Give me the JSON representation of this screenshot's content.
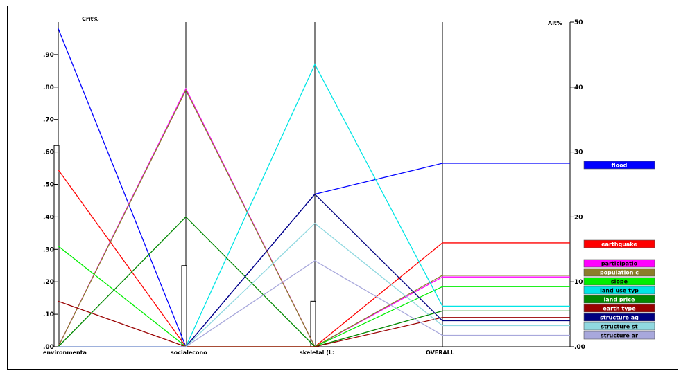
{
  "chart_data": {
    "type": "line",
    "title": "",
    "left_axis_label": "Crit%",
    "right_axis_label": "Alt%",
    "categories": [
      "environmenta",
      "socialecono",
      "skeletal (L:",
      "OVERALL"
    ],
    "left_ticks": [
      ".00",
      ".10",
      ".20",
      ".30",
      ".40",
      ".50",
      ".60",
      ".70",
      ".80",
      ".90"
    ],
    "right_ticks": [
      ".00",
      "10",
      "20",
      "30",
      "40",
      "50"
    ],
    "ylim_left": [
      0,
      1.0
    ],
    "ylim_right": [
      0,
      50
    ],
    "criteria_weights": [
      0.62,
      0.25,
      0.14
    ],
    "legend_position": "right",
    "series": [
      {
        "name": "flood",
        "color": "#0000ff",
        "values": [
          0.98,
          0.0,
          0.47,
          0.565
        ]
      },
      {
        "name": "earthquake",
        "color": "#ff0000",
        "values": [
          0.545,
          0.0,
          0.0,
          0.32
        ]
      },
      {
        "name": "participatio",
        "color": "#ff00ff",
        "values": [
          0.0,
          0.795,
          0.0,
          0.215
        ]
      },
      {
        "name": "population c",
        "color": "#8b7d2a",
        "values": [
          0.0,
          0.79,
          0.0,
          0.22
        ]
      },
      {
        "name": "slope",
        "color": "#00ee00",
        "values": [
          0.31,
          0.0,
          0.0,
          0.185
        ]
      },
      {
        "name": "land use typ",
        "color": "#00e5e5",
        "values": [
          0.0,
          0.0,
          0.87,
          0.125
        ]
      },
      {
        "name": "land price",
        "color": "#008800",
        "values": [
          0.0,
          0.4,
          0.0,
          0.11
        ]
      },
      {
        "name": "earth type",
        "color": "#990000",
        "values": [
          0.14,
          0.0,
          0.0,
          0.09
        ]
      },
      {
        "name": "structure ag",
        "color": "#000080",
        "values": [
          0.0,
          0.0,
          0.47,
          0.08
        ]
      },
      {
        "name": "structure st",
        "color": "#90d8e0",
        "values": [
          0.0,
          0.0,
          0.38,
          0.065
        ]
      },
      {
        "name": "structure ar",
        "color": "#a8a8dc",
        "values": [
          0.0,
          0.0,
          0.265,
          0.035
        ]
      }
    ]
  }
}
